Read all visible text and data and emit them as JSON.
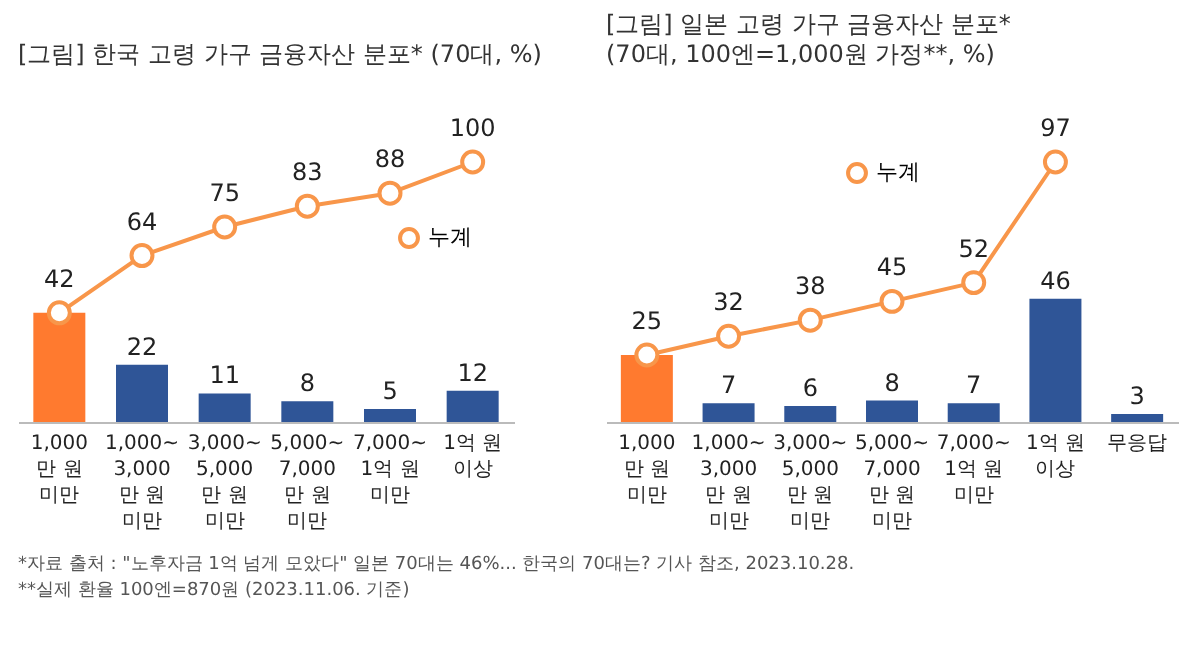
{
  "chart_data": [
    {
      "type": "bar",
      "title": "[그림] 한국 고령 가구 금융자산 분포* (70대, %)",
      "categories": [
        "1,000\n만 원\n미만",
        "1,000~\n3,000\n만 원\n미만",
        "3,000~\n5,000\n만 원\n미만",
        "5,000~\n7,000\n만 원\n미만",
        "7,000~\n1억 원\n미만",
        "1억 원\n이상"
      ],
      "legend": "right",
      "series": [
        {
          "colors": [
            "#ff7a2f",
            "#2f5597",
            "#2f5597",
            "#2f5597",
            "#2f5597",
            "#2f5597"
          ],
          "values": [
            42,
            22,
            11,
            8,
            5,
            12
          ],
          "value_labels": [
            null,
            "22",
            "11",
            "8",
            "5",
            "12"
          ]
        },
        {
          "type": "line",
          "name": "누계",
          "color": "#f8964a",
          "marker": "circle",
          "values": [
            42,
            64,
            75,
            83,
            88,
            100
          ],
          "value_labels": [
            "42",
            "64",
            "75",
            "83",
            "88",
            "100"
          ]
        }
      ],
      "annotations": [
        "*자료 출처 : \"노후자금 1억 넘게 모았다\" 일본 70대는 46%... 한국의 70대는? 기사 참조, 2023.10.28.",
        "**실제 환율 100엔=870원 (2023.11.06. 기준)"
      ]
    },
    {
      "type": "bar",
      "title": "[그림] 일본 고령 가구 금융자산 분포*",
      "subtitle": "(70대, 100엔=1,000원 가정**, %)",
      "categories": [
        "1,000\n만 원\n미만",
        "1,000~\n3,000\n만 원\n미만",
        "3,000~\n5,000\n만 원\n미만",
        "5,000~\n7,000\n만 원\n미만",
        "7,000~\n1억 원\n미만",
        "1억 원\n이상",
        "무응답"
      ],
      "legend": "top",
      "series": [
        {
          "colors": [
            "#ff7a2f",
            "#2f5597",
            "#2f5597",
            "#2f5597",
            "#2f5597",
            "#2f5597",
            "#2f5597"
          ],
          "values": [
            25,
            7,
            6,
            8,
            7,
            46,
            3
          ],
          "value_labels": [
            null,
            "7",
            "6",
            "8",
            "7",
            "46",
            "3"
          ]
        },
        {
          "type": "line",
          "name": "누계",
          "color": "#f8964a",
          "marker": "circle",
          "values": [
            25,
            32,
            38,
            45,
            52,
            97,
            null
          ],
          "value_labels": [
            "25",
            "32",
            "38",
            "45",
            "52",
            "97",
            null
          ]
        }
      ]
    }
  ]
}
